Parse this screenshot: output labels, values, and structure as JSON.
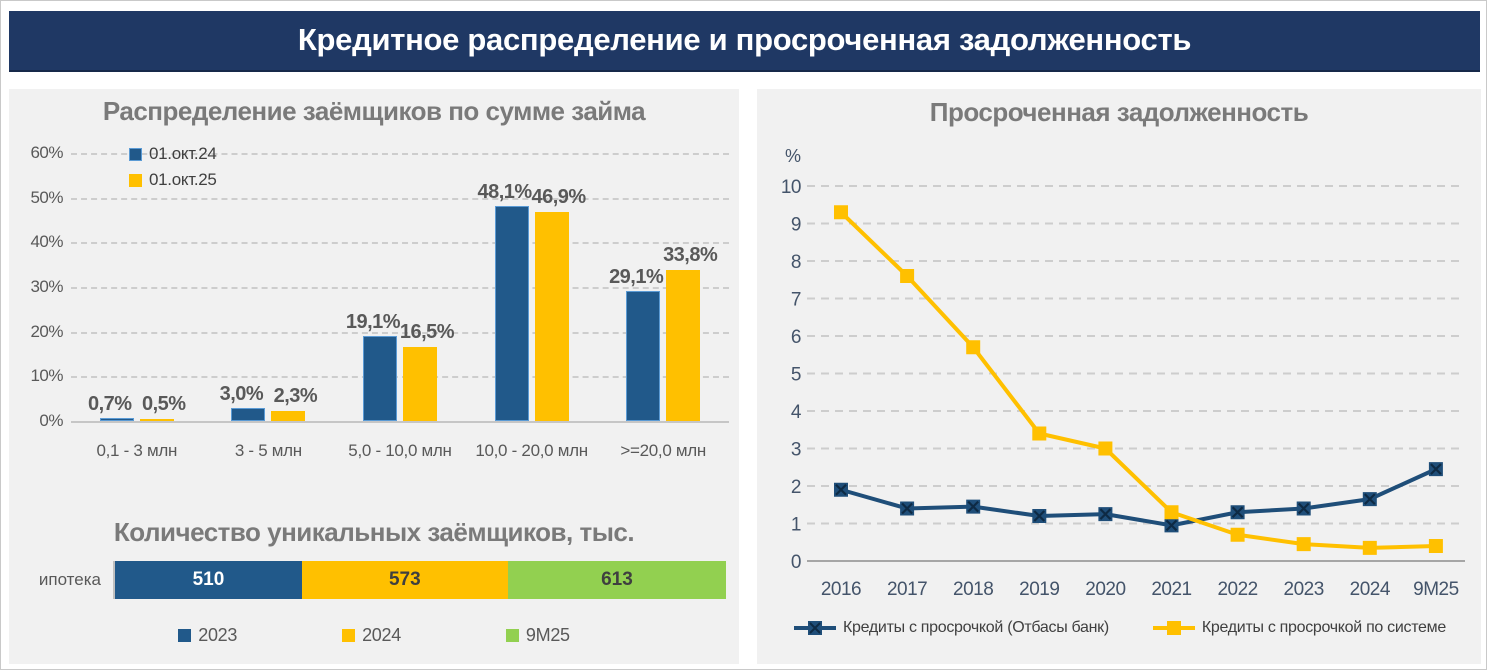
{
  "banner": {
    "title": "Кредитное распределение и просроченная задолженность"
  },
  "chart_data": [
    {
      "type": "bar",
      "title": "Распределение заёмщиков по сумме займа",
      "categories": [
        "0,1 - 3 млн",
        "3 - 5 млн",
        "5,0 - 10,0 млн",
        "10,0 - 20,0 млн",
        ">=20,0 млн"
      ],
      "series": [
        {
          "name": "01.окт.24",
          "color": "#21598A",
          "border": "#5B9BD5",
          "values": [
            0.7,
            3.0,
            19.1,
            48.1,
            29.1
          ],
          "labels": [
            "0,7%",
            "3,0%",
            "19,1%",
            "48,1%",
            "29,1%"
          ]
        },
        {
          "name": "01.окт.25",
          "color": "#FFC000",
          "border": "",
          "values": [
            0.5,
            2.3,
            16.5,
            46.9,
            33.8
          ],
          "labels": [
            "0,5%",
            "2,3%",
            "16,5%",
            "46,9%",
            "33,8%"
          ]
        }
      ],
      "y_ticks": [
        "60%",
        "50%",
        "40%",
        "30%",
        "20%",
        "10%",
        "0%"
      ],
      "ylim": [
        0,
        60
      ],
      "grid": "dashed-horizontal",
      "legend_position": "top-left"
    },
    {
      "type": "bar",
      "subtype": "horizontal-stacked",
      "title": "Количество уникальных заёмщиков, тыс.",
      "row_label": "ипотека",
      "segments": [
        {
          "year": "2023",
          "value": 510,
          "color": "#21598A",
          "text_color": "#FFFFFF"
        },
        {
          "year": "2024",
          "value": 573,
          "color": "#FFC000",
          "text_color": "#3F3F3F"
        },
        {
          "year": "9М25",
          "value": 613,
          "color": "#92D050",
          "text_color": "#3F3F3F"
        }
      ],
      "legend_position": "bottom"
    },
    {
      "type": "line",
      "title": "Просроченная задолженность",
      "unit": "%",
      "x": [
        "2016",
        "2017",
        "2018",
        "2019",
        "2020",
        "2021",
        "2022",
        "2023",
        "2024",
        "9М25"
      ],
      "series": [
        {
          "name": "Кредиты с просрочкой (Отбасы банк)",
          "color": "#1F4E79",
          "marker": "x-square",
          "marker_x_color": "#0E2A44",
          "values": [
            1.9,
            1.4,
            1.45,
            1.2,
            1.25,
            0.95,
            1.3,
            1.4,
            1.65,
            2.45
          ]
        },
        {
          "name": "Кредиты с просрочкой по системе",
          "color": "#FFC000",
          "marker": "square",
          "marker_x_color": "",
          "values": [
            9.3,
            7.6,
            5.7,
            3.4,
            3.0,
            1.3,
            0.7,
            0.45,
            0.35,
            0.4
          ]
        }
      ],
      "y_ticks": [
        10,
        9,
        8,
        7,
        6,
        5,
        4,
        3,
        2,
        1,
        0
      ],
      "ylim": [
        0,
        10
      ],
      "grid": "dashed-horizontal",
      "legend_position": "bottom"
    }
  ]
}
